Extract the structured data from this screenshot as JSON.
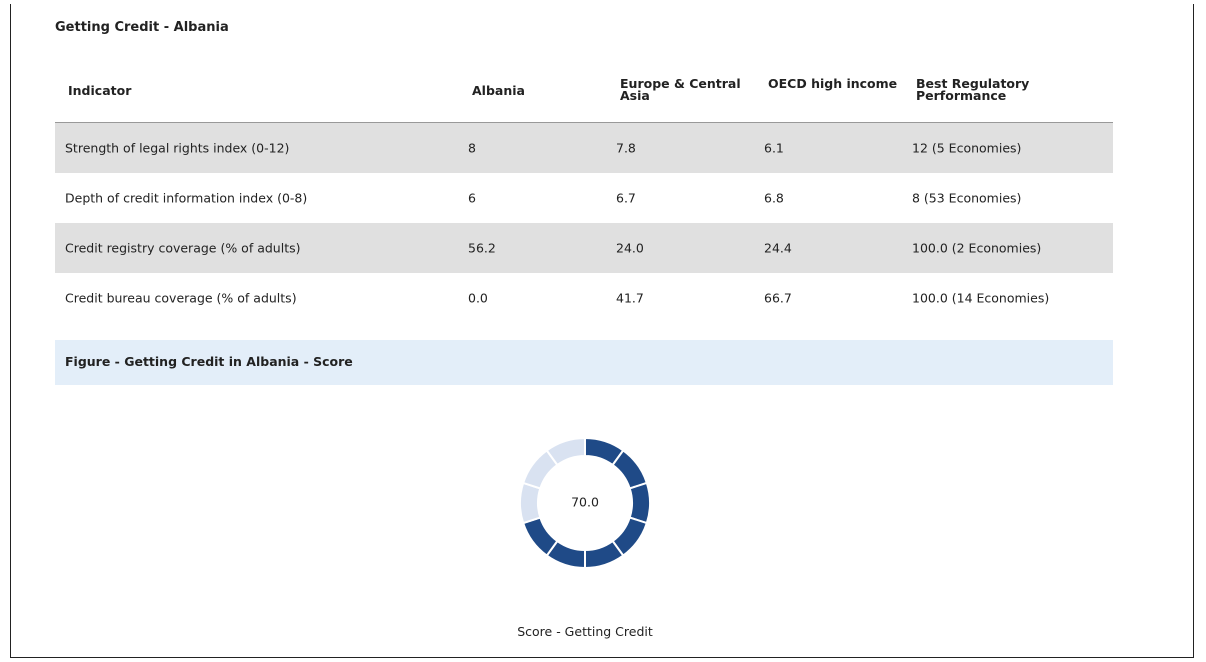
{
  "title": "Getting Credit - Albania",
  "table": {
    "header": [
      "Indicator",
      "Albania",
      "Europe & Central Asia",
      "OECD high income",
      "Best Regulatory Performance"
    ],
    "rows": [
      [
        "Strength of legal rights index (0-12)",
        "8",
        "7.8",
        "6.1",
        "12 (5 Economies)"
      ],
      [
        "Depth of credit information index (0-8)",
        "6",
        "6.7",
        "6.8",
        "8 (53 Economies)"
      ],
      [
        "Credit registry coverage (% of adults)",
        "56.2",
        "24.0",
        "24.4",
        "100.0 (2 Economies)"
      ],
      [
        "Credit bureau coverage (% of adults)",
        "0.0",
        "41.7",
        "66.7",
        "100.0 (14 Economies)"
      ]
    ]
  },
  "figure": {
    "title": "Figure - Getting Credit in Albania - Score"
  },
  "chart_data": {
    "type": "donut",
    "values": [
      70
    ],
    "value_labels": [
      "70.0"
    ],
    "range": [
      0,
      100
    ],
    "segments": 10,
    "color": "#1f4a87",
    "track_color": "#d9e2f1",
    "caption": "Score - Getting Credit"
  }
}
